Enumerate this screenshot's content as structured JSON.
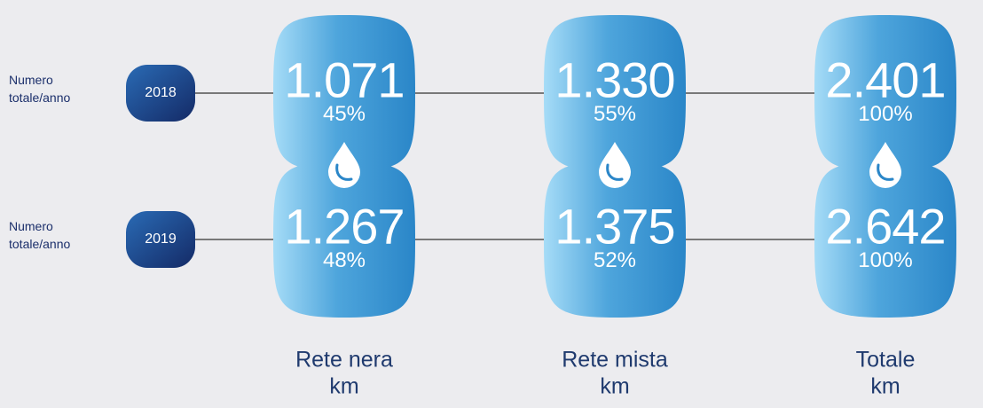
{
  "rows": [
    {
      "label": "Numero totale/anno",
      "year": "2018",
      "cells": [
        {
          "value": "1.071",
          "share": "45%"
        },
        {
          "value": "1.330",
          "share": "55%"
        },
        {
          "value": "2.401",
          "share": "100%"
        }
      ]
    },
    {
      "label": "Numero totale/anno",
      "year": "2019",
      "cells": [
        {
          "value": "1.267",
          "share": "48%"
        },
        {
          "value": "1.375",
          "share": "52%"
        },
        {
          "value": "2.642",
          "share": "100%"
        }
      ]
    }
  ],
  "columns": [
    {
      "label": "Rete nera",
      "unit": "km"
    },
    {
      "label": "Rete mista",
      "unit": "km"
    },
    {
      "label": "Totale",
      "unit": "km"
    }
  ]
}
